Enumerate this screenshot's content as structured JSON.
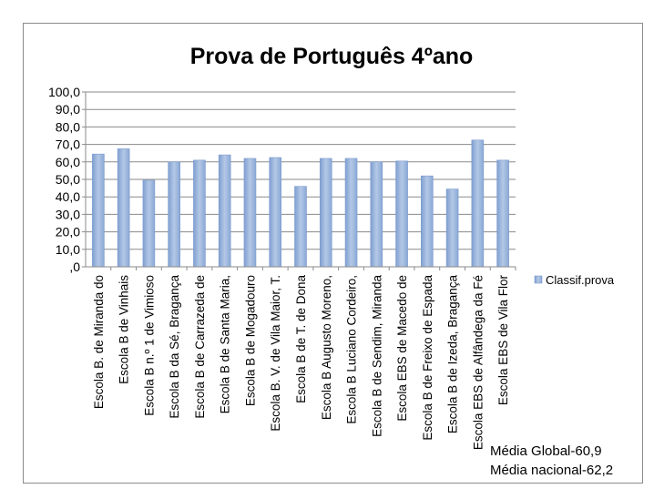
{
  "chart_data": {
    "type": "bar",
    "title": "Prova de Português 4ºano",
    "xlabel": "",
    "ylabel": "",
    "ylim": [
      0,
      100
    ],
    "ytick_step": 10,
    "ytick_labels": [
      ",0",
      "10,0",
      "20,0",
      "30,0",
      "40,0",
      "50,0",
      "60,0",
      "70,0",
      "80,0",
      "90,0",
      "100,0"
    ],
    "grid": true,
    "legend_position": "right",
    "bar_color": "#95b3d7",
    "categories": [
      "Escola B. de Miranda do",
      "Escola B de Vinhais",
      "Escola B n.º 1 de Vimioso",
      "Escola B da Sé, Bragança",
      "Escola B de Carrazeda de",
      "Escola B de Santa Maria,",
      "Escola B de Mogadouro",
      "Escola B. V. de Vila Maior, T.",
      "Escola B de T. de Dona",
      "Escola B Augusto Moreno,",
      "Escola B Luciano Cordeiro,",
      "Escola B de Sendim, Miranda",
      "Escola EBS de Macedo de",
      "Escola B de Freixo de Espada",
      "Escola B de Izeda, Bragança",
      "Escola EBS de Alfândega da Fé",
      "Escola EBS de Vila Flor"
    ],
    "series": [
      {
        "name": "Classif.prova",
        "values": [
          64.5,
          67.5,
          49.5,
          60.0,
          61.0,
          64.0,
          62.0,
          62.5,
          46.0,
          62.0,
          62.0,
          60.0,
          60.5,
          52.0,
          44.5,
          72.5,
          61.0
        ]
      }
    ],
    "annotations": [
      "Média Global-60,9",
      "Média nacional-62,2"
    ]
  }
}
